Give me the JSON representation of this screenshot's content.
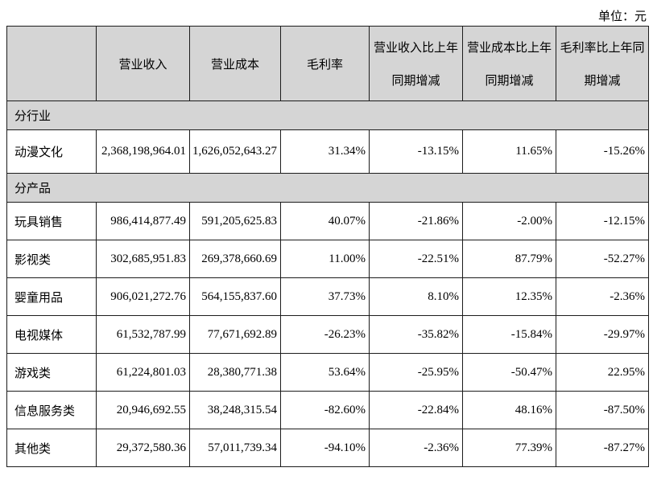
{
  "page": {
    "unit_label": "单位：元"
  },
  "colors": {
    "header_bg": "#d5d5d5",
    "section_bg": "#d5d5d5",
    "border": "#1c1c1c",
    "text": "#000000",
    "row_bg": "#ffffff"
  },
  "table": {
    "columns": [
      {
        "line1": "",
        "line2": ""
      },
      {
        "line1": "营业收入",
        "line2": ""
      },
      {
        "line1": "营业成本",
        "line2": ""
      },
      {
        "line1": "毛利率",
        "line2": ""
      },
      {
        "line1": "营业收入比上年",
        "line2": "同期增减"
      },
      {
        "line1": "营业成本比上年",
        "line2": "同期增减"
      },
      {
        "line1": "毛利率比上年同",
        "line2": "期增减"
      }
    ],
    "rows": [
      {
        "type": "section",
        "label": "分行业"
      },
      {
        "type": "data",
        "tall": true,
        "label": "动漫文化",
        "values": [
          "2,368,198,964.01",
          "1,626,052,643.27",
          "31.34%",
          "-13.15%",
          "11.65%",
          "-15.26%"
        ]
      },
      {
        "type": "section",
        "label": "分产品"
      },
      {
        "type": "data",
        "label": "玩具销售",
        "values": [
          "986,414,877.49",
          "591,205,625.83",
          "40.07%",
          "-21.86%",
          "-2.00%",
          "-12.15%"
        ]
      },
      {
        "type": "data",
        "label": "影视类",
        "values": [
          "302,685,951.83",
          "269,378,660.69",
          "11.00%",
          "-22.51%",
          "87.79%",
          "-52.27%"
        ]
      },
      {
        "type": "data",
        "label": "婴童用品",
        "values": [
          "906,021,272.76",
          "564,155,837.60",
          "37.73%",
          "8.10%",
          "12.35%",
          "-2.36%"
        ]
      },
      {
        "type": "data",
        "label": "电视媒体",
        "values": [
          "61,532,787.99",
          "77,671,692.89",
          "-26.23%",
          "-35.82%",
          "-15.84%",
          "-29.97%"
        ]
      },
      {
        "type": "data",
        "label": "游戏类",
        "values": [
          "61,224,801.03",
          "28,380,771.38",
          "53.64%",
          "-25.95%",
          "-50.47%",
          "22.95%"
        ]
      },
      {
        "type": "data",
        "label": "信息服务类",
        "values": [
          "20,946,692.55",
          "38,248,315.54",
          "-82.60%",
          "-22.84%",
          "48.16%",
          "-87.50%"
        ]
      },
      {
        "type": "data",
        "label": "其他类",
        "values": [
          "29,372,580.36",
          "57,011,739.34",
          "-94.10%",
          "-2.36%",
          "77.39%",
          "-87.27%"
        ]
      }
    ]
  }
}
